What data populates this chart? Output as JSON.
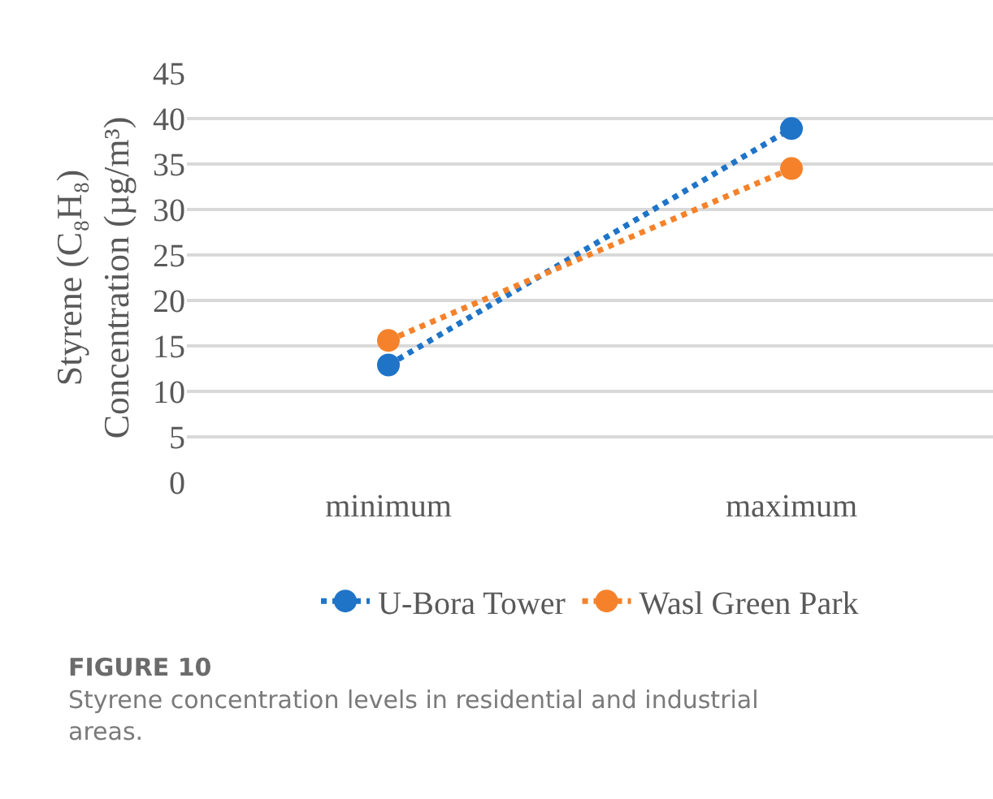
{
  "chart_data": {
    "type": "line",
    "ylabel": "Styrene (C₈H₈) Concentration (µg/m³)",
    "categories": [
      "minimum",
      "maximum"
    ],
    "series": [
      {
        "name": "U-Bora Tower",
        "color": "#1f74c8",
        "values": [
          12.9,
          38.9
        ]
      },
      {
        "name": "Wasl Green Park",
        "color": "#f5822a",
        "values": [
          15.6,
          34.5
        ]
      }
    ],
    "ylim": [
      0,
      45
    ],
    "yticks": [
      0,
      5,
      10,
      15,
      20,
      25,
      30,
      35,
      40,
      45
    ],
    "grid": "y",
    "legend": "bottom",
    "marker": "circle",
    "line_style": "dotted",
    "annotations": [
      "FIGURE 10",
      "Styrene concentration levels in residential and industrial areas."
    ]
  }
}
